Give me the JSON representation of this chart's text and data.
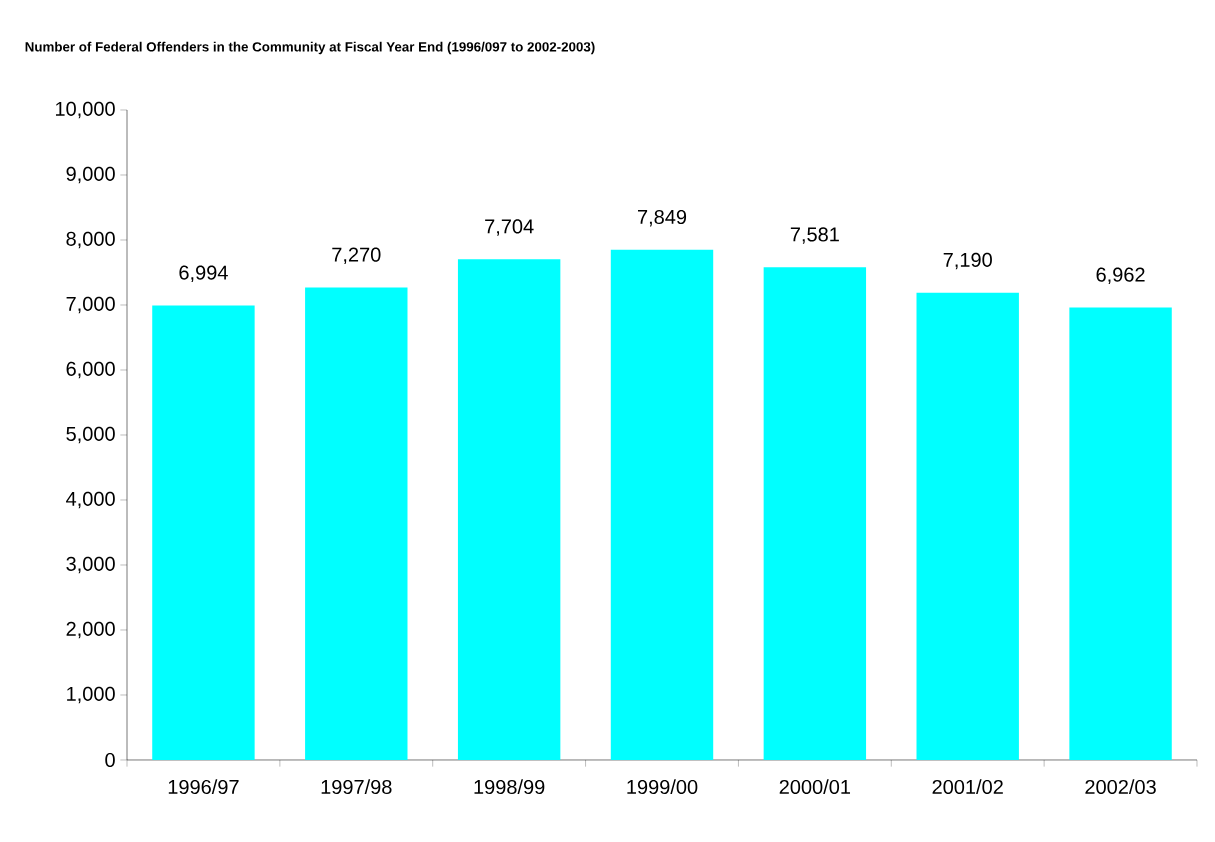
{
  "chart_data": {
    "type": "bar",
    "title": "Number of Federal Offenders in the Community at Fiscal Year End (1996/097 to 2002-2003)",
    "categories": [
      "1996/97",
      "1997/98",
      "1998/99",
      "1999/00",
      "2000/01",
      "2001/02",
      "2002/03"
    ],
    "values": [
      6994,
      7270,
      7704,
      7849,
      7581,
      7190,
      6962
    ],
    "value_labels": [
      "6,994",
      "7,270",
      "7,704",
      "7,849",
      "7,581",
      "7,190",
      "6,962"
    ],
    "color": "#00ffff",
    "ylim": [
      0,
      10000
    ],
    "yticks": [
      {
        "value": 0,
        "label": "0"
      },
      {
        "value": 1000,
        "label": "1,000"
      },
      {
        "value": 2000,
        "label": "2,000"
      },
      {
        "value": 3000,
        "label": "3,000"
      },
      {
        "value": 4000,
        "label": "4,000"
      },
      {
        "value": 5000,
        "label": "5,000"
      },
      {
        "value": 6000,
        "label": "6,000"
      },
      {
        "value": 7000,
        "label": "7,000"
      },
      {
        "value": 8000,
        "label": "8,000"
      },
      {
        "value": 9000,
        "label": "9,000"
      },
      {
        "value": 10000,
        "label": "10,000"
      }
    ]
  }
}
